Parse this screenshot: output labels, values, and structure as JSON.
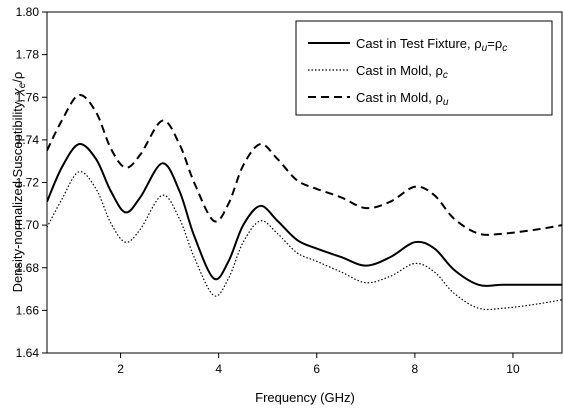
{
  "chart_data": {
    "type": "line",
    "xlabel": "Frequency (GHz)",
    "ylabel": "Density-normalized Susceptibility, χe/ρ",
    "xlim": [
      0.5,
      11.0
    ],
    "ylim": [
      1.64,
      1.8
    ],
    "xticks": [
      2,
      4,
      6,
      8,
      10
    ],
    "yticks": [
      1.64,
      1.66,
      1.68,
      1.7,
      1.72,
      1.74,
      1.76,
      1.78,
      1.8
    ],
    "ytick_labels": [
      "1.64",
      "1.66",
      "1.68",
      "1.70",
      "1.72",
      "1.74",
      "1.76",
      "1.78",
      "1.80"
    ],
    "grid": false,
    "legend_position": "top-right",
    "series": [
      {
        "name": "Cast in Test Fixture, ρu=ρc",
        "style": "solid",
        "x": [
          0.5,
          0.8,
          1.15,
          1.5,
          1.8,
          2.1,
          2.4,
          2.85,
          3.2,
          3.5,
          3.9,
          4.2,
          4.5,
          4.85,
          5.2,
          5.6,
          6.0,
          6.5,
          7.0,
          7.5,
          8.0,
          8.4,
          8.8,
          9.3,
          9.8,
          10.5,
          11.0
        ],
        "y": [
          1.711,
          1.727,
          1.738,
          1.731,
          1.716,
          1.706,
          1.713,
          1.729,
          1.716,
          1.695,
          1.675,
          1.683,
          1.7,
          1.709,
          1.702,
          1.693,
          1.689,
          1.685,
          1.681,
          1.685,
          1.692,
          1.689,
          1.679,
          1.672,
          1.672,
          1.672,
          1.672
        ]
      },
      {
        "name": "Cast in Mold, ρc",
        "style": "dotted",
        "x": [
          0.5,
          0.8,
          1.15,
          1.5,
          1.8,
          2.1,
          2.4,
          2.85,
          3.2,
          3.5,
          3.9,
          4.2,
          4.5,
          4.85,
          5.2,
          5.6,
          6.0,
          6.5,
          7.0,
          7.5,
          8.0,
          8.4,
          8.8,
          9.3,
          9.8,
          10.5,
          11.0
        ],
        "y": [
          1.699,
          1.712,
          1.725,
          1.717,
          1.701,
          1.692,
          1.698,
          1.714,
          1.703,
          1.685,
          1.667,
          1.675,
          1.692,
          1.702,
          1.696,
          1.687,
          1.683,
          1.678,
          1.673,
          1.676,
          1.682,
          1.678,
          1.668,
          1.661,
          1.661,
          1.663,
          1.665
        ]
      },
      {
        "name": "Cast in Mold, ρu",
        "style": "dashed",
        "x": [
          0.5,
          0.8,
          1.15,
          1.5,
          1.8,
          2.1,
          2.4,
          2.85,
          3.2,
          3.5,
          3.9,
          4.2,
          4.5,
          4.85,
          5.2,
          5.6,
          6.0,
          6.5,
          7.0,
          7.5,
          8.0,
          8.4,
          8.8,
          9.3,
          9.8,
          10.5,
          11.0
        ],
        "y": [
          1.735,
          1.749,
          1.761,
          1.753,
          1.736,
          1.727,
          1.733,
          1.749,
          1.738,
          1.72,
          1.702,
          1.71,
          1.728,
          1.738,
          1.731,
          1.721,
          1.717,
          1.713,
          1.708,
          1.711,
          1.718,
          1.714,
          1.703,
          1.696,
          1.696,
          1.698,
          1.7
        ]
      }
    ]
  },
  "legend": {
    "entries": [
      {
        "text": "Cast in Test Fixture, ",
        "sym1": "ρ",
        "sub1": "u",
        "eq": "=",
        "sym2": "ρ",
        "sub2": "c"
      },
      {
        "text": "Cast in Mold, ",
        "sym1": "ρ",
        "sub1": "c"
      },
      {
        "text": "Cast in Mold, ",
        "sym1": "ρ",
        "sub1": "u"
      }
    ]
  },
  "ylabel_parts": {
    "prefix": "Density-normalized Susceptibility, ",
    "chi": "χ",
    "sub": "e",
    "slash": "/",
    "rho": "ρ"
  }
}
